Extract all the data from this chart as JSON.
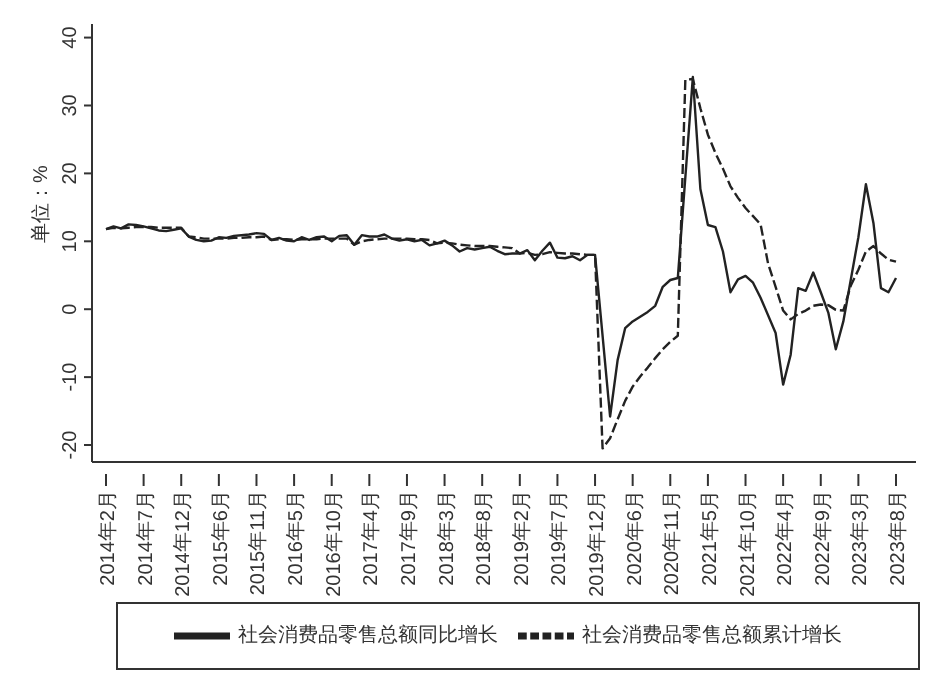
{
  "chart_data": {
    "type": "line",
    "ylabel": "单位：%",
    "categories": [
      "2014年2月",
      null,
      null,
      null,
      null,
      "2014年7月",
      null,
      null,
      null,
      null,
      "2014年12月",
      null,
      null,
      null,
      null,
      "2015年6月",
      null,
      null,
      null,
      null,
      "2015年11月",
      null,
      null,
      null,
      null,
      "2016年5月",
      null,
      null,
      null,
      null,
      "2016年10月",
      null,
      null,
      null,
      null,
      "2017年4月",
      null,
      null,
      null,
      null,
      "2017年9月",
      null,
      null,
      null,
      null,
      "2018年3月",
      null,
      null,
      null,
      null,
      "2018年8月",
      null,
      null,
      null,
      null,
      "2019年2月",
      null,
      null,
      null,
      null,
      "2019年7月",
      null,
      null,
      null,
      null,
      "2019年12月",
      null,
      null,
      null,
      null,
      "2020年6月",
      null,
      null,
      null,
      null,
      "2020年11月",
      null,
      null,
      null,
      null,
      "2021年5月",
      null,
      null,
      null,
      null,
      "2021年10月",
      null,
      null,
      null,
      null,
      "2022年4月",
      null,
      null,
      null,
      null,
      "2022年9月",
      null,
      null,
      null,
      null,
      "2023年3月",
      null,
      null,
      null,
      null,
      "2023年8月"
    ],
    "series": [
      {
        "name": "社会消费品零售总额同比增长",
        "color": "#222222",
        "line_style": "solid",
        "values": [
          11.8,
          12.2,
          11.9,
          12.5,
          12.4,
          12.2,
          11.9,
          11.6,
          11.5,
          11.7,
          11.9,
          10.7,
          10.2,
          10.0,
          10.1,
          10.6,
          10.5,
          10.8,
          10.9,
          11.0,
          11.2,
          11.1,
          10.2,
          10.5,
          10.1,
          10.0,
          10.6,
          10.2,
          10.6,
          10.7,
          10.0,
          10.8,
          10.9,
          9.5,
          10.9,
          10.7,
          10.7,
          11.0,
          10.4,
          10.1,
          10.3,
          10.0,
          10.2,
          9.4,
          9.7,
          10.1,
          9.4,
          8.5,
          9.0,
          8.8,
          9.0,
          9.2,
          8.6,
          8.1,
          8.2,
          8.2,
          8.7,
          7.2,
          8.6,
          9.8,
          7.6,
          7.5,
          7.8,
          7.2,
          8.0,
          8.0,
          null,
          -15.8,
          -7.5,
          -2.8,
          -1.8,
          -1.1,
          -0.4,
          0.5,
          3.3,
          4.3,
          4.6,
          null,
          34.2,
          17.7,
          12.4,
          12.1,
          8.5,
          2.5,
          4.4,
          4.9,
          3.9,
          1.7,
          null,
          -3.5,
          -11.1,
          -6.7,
          3.1,
          2.7,
          5.4,
          2.5,
          -0.5,
          -5.9,
          -1.8,
          null,
          10.6,
          18.4,
          12.7,
          3.1,
          2.5,
          4.6
        ]
      },
      {
        "name": "社会消费品零售总额累计增长",
        "color": "#222222",
        "line_style": "dashed",
        "values": [
          11.8,
          12.0,
          11.9,
          12.0,
          12.1,
          12.1,
          12.1,
          12.0,
          12.0,
          12.0,
          12.0,
          10.7,
          10.6,
          10.4,
          10.4,
          10.4,
          10.4,
          10.5,
          10.5,
          10.6,
          10.6,
          10.7,
          10.2,
          10.3,
          10.3,
          10.2,
          10.3,
          10.3,
          10.3,
          10.4,
          10.4,
          10.4,
          10.4,
          9.5,
          10.0,
          10.2,
          10.3,
          10.4,
          10.4,
          10.4,
          10.4,
          10.3,
          10.3,
          10.2,
          9.7,
          9.8,
          9.7,
          9.5,
          9.4,
          9.3,
          9.3,
          9.3,
          9.2,
          9.1,
          9.0,
          8.2,
          8.3,
          8.0,
          8.1,
          8.4,
          8.3,
          8.2,
          8.2,
          8.1,
          8.0,
          8.0,
          -20.5,
          -19.0,
          -16.2,
          -13.5,
          -11.4,
          -9.9,
          -8.6,
          -7.2,
          -5.9,
          -4.8,
          -3.9,
          33.8,
          33.9,
          29.6,
          25.7,
          23.0,
          20.7,
          18.1,
          16.4,
          14.9,
          13.7,
          12.5,
          6.7,
          3.3,
          -0.2,
          -1.5,
          -0.7,
          -0.2,
          0.5,
          0.7,
          0.6,
          -0.1,
          -0.2,
          3.5,
          5.8,
          8.5,
          9.3,
          8.2,
          7.3,
          7.0
        ]
      }
    ],
    "ylim": [
      -22.5,
      42
    ],
    "yticks": [
      -20,
      -10,
      0,
      10,
      20,
      30,
      40
    ],
    "grid": false,
    "legend": "bottom",
    "marker": "none"
  }
}
